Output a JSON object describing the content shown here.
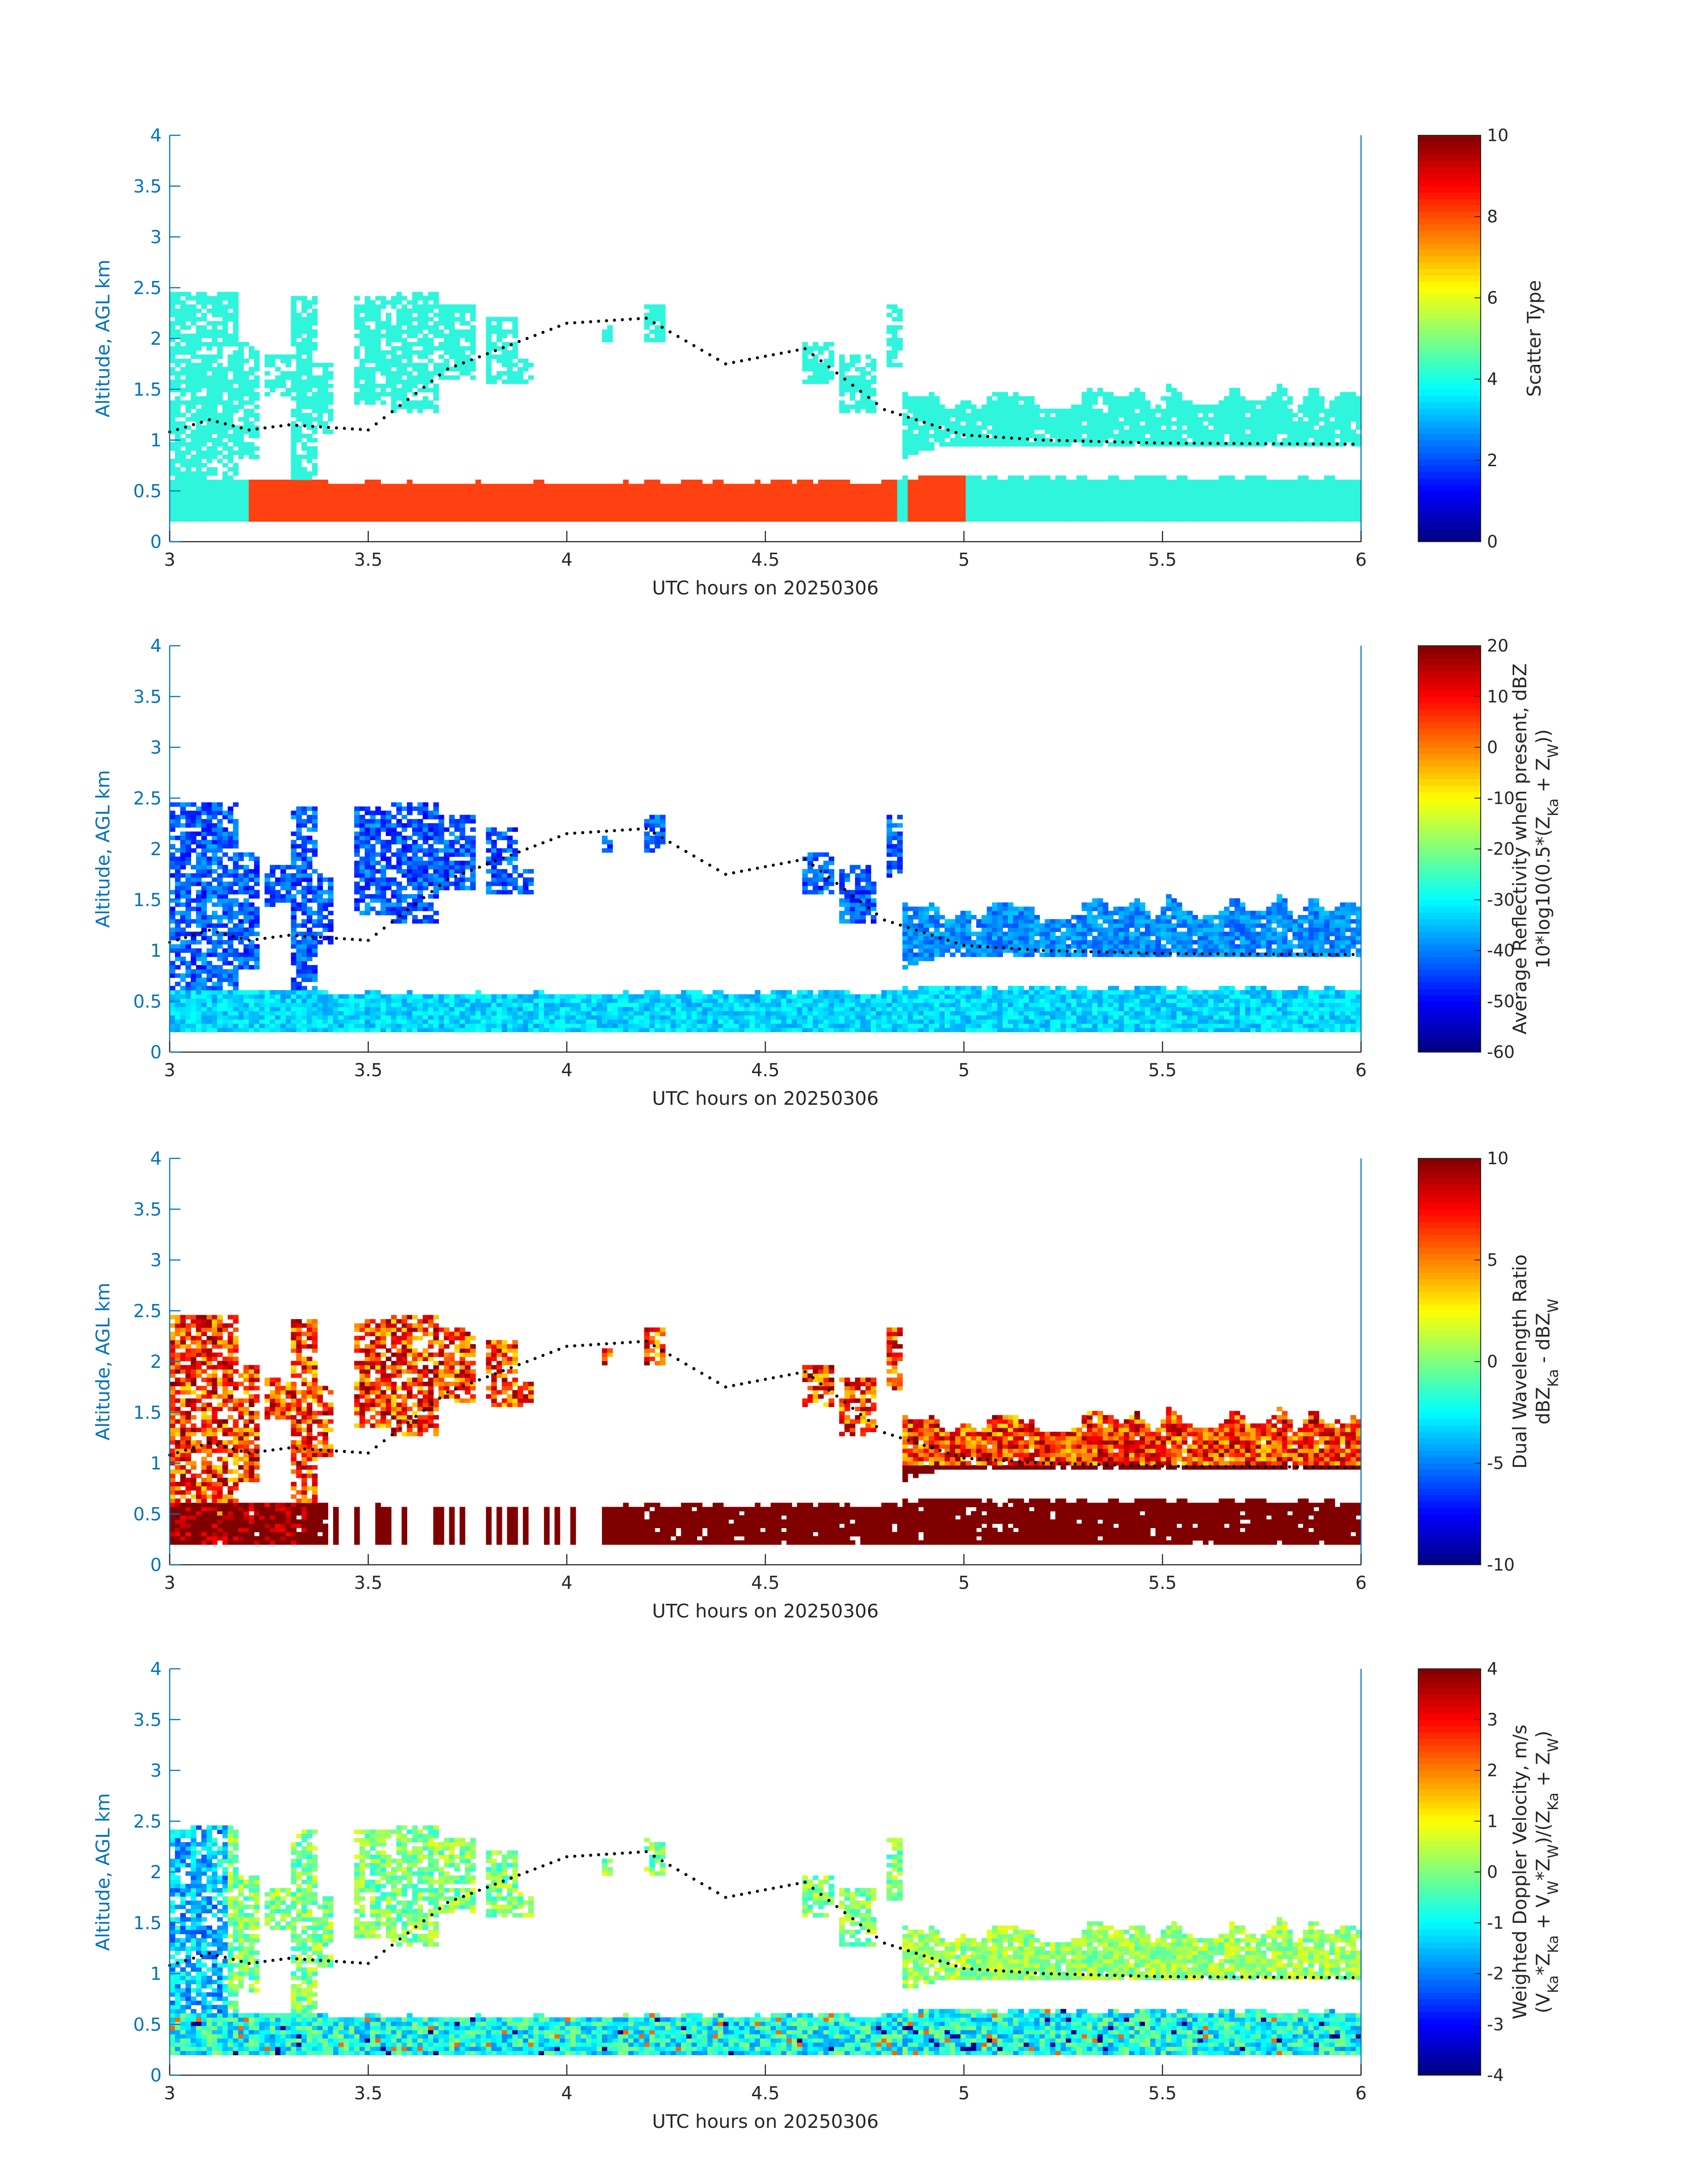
{
  "chart_data": [
    {
      "type": "heatmap",
      "title": "",
      "xlabel": "UTC hours on 20250306",
      "ylabel": "Altitude, AGL km",
      "xlim": [
        3,
        6
      ],
      "ylim": [
        0,
        4
      ],
      "xticks": [
        "3",
        "3.5",
        "4",
        "4.5",
        "5",
        "5.5",
        "6"
      ],
      "yticks": [
        "0",
        "0.5",
        "1",
        "1.5",
        "2",
        "2.5",
        "3",
        "3.5",
        "4"
      ],
      "colorbar": {
        "label_lines": [
          "Scatter Type"
        ],
        "range": [
          0,
          10
        ],
        "ticks": [
          "0",
          "2",
          "4",
          "6",
          "8",
          "10"
        ],
        "colormap": "jet"
      },
      "layers": [
        {
          "value": 4,
          "color": "#2ff5dc",
          "description": "cyan scatter class",
          "time_range": [
            3.0,
            6.0
          ],
          "altitude_range": [
            0.2,
            2.45
          ]
        },
        {
          "value": 9,
          "color": "#ff4010",
          "description": "orange scatter class",
          "time_range": [
            3.2,
            5.1
          ],
          "altitude_range": [
            0.2,
            0.7
          ]
        }
      ],
      "height_marker_points": [
        [
          3.0,
          1.08
        ],
        [
          3.1,
          1.2
        ],
        [
          3.2,
          1.1
        ],
        [
          3.3,
          1.15
        ],
        [
          3.5,
          1.1
        ],
        [
          3.7,
          1.7
        ],
        [
          4.0,
          2.15
        ],
        [
          4.2,
          2.2
        ],
        [
          4.4,
          1.75
        ],
        [
          4.6,
          1.9
        ],
        [
          4.8,
          1.3
        ],
        [
          5.0,
          1.05
        ],
        [
          5.2,
          1.0
        ],
        [
          5.5,
          0.97
        ],
        [
          6.0,
          0.96
        ]
      ]
    },
    {
      "type": "heatmap",
      "title": "",
      "xlabel": "UTC hours on 20250306",
      "ylabel": "Altitude, AGL km",
      "xlim": [
        3,
        6
      ],
      "ylim": [
        0,
        4
      ],
      "xticks": [
        "3",
        "3.5",
        "4",
        "4.5",
        "5",
        "5.5",
        "6"
      ],
      "yticks": [
        "0",
        "0.5",
        "1",
        "1.5",
        "2",
        "2.5",
        "3",
        "3.5",
        "4"
      ],
      "colorbar": {
        "label_lines": [
          "Average Reflectivity when present, dBZ",
          "10*log10(0.5*(Z_Ka + Z_W))"
        ],
        "range": [
          -60,
          20
        ],
        "ticks": [
          "-60",
          "-50",
          "-40",
          "-30",
          "-20",
          "-10",
          "0",
          "10",
          "20"
        ],
        "colormap": "jet"
      },
      "field_summary": {
        "boundary_layer_dBZ": [
          -40,
          -30
        ],
        "cloud_layer_dBZ": [
          -55,
          -35
        ]
      }
    },
    {
      "type": "heatmap",
      "title": "",
      "xlabel": "UTC hours on 20250306",
      "ylabel": "Altitude, AGL km",
      "xlim": [
        3,
        6
      ],
      "ylim": [
        0,
        4
      ],
      "xticks": [
        "3",
        "3.5",
        "4",
        "4.5",
        "5",
        "5.5",
        "6"
      ],
      "yticks": [
        "0",
        "0.5",
        "1",
        "1.5",
        "2",
        "2.5",
        "3",
        "3.5",
        "4"
      ],
      "colorbar": {
        "label_lines": [
          "Dual Wavelength Ratio",
          "dBZ_Ka - dBZ_W"
        ],
        "range": [
          -10,
          10
        ],
        "ticks": [
          "-10",
          "-5",
          "0",
          "5",
          "10"
        ],
        "colormap": "jet"
      },
      "field_summary": {
        "lower_layer_dB": 10,
        "upper_cloud_dB": [
          4,
          9
        ]
      }
    },
    {
      "type": "heatmap",
      "title": "",
      "xlabel": "UTC hours on 20250306",
      "ylabel": "Altitude, AGL km",
      "xlim": [
        3,
        6
      ],
      "ylim": [
        0,
        4
      ],
      "xticks": [
        "3",
        "3.5",
        "4",
        "4.5",
        "5",
        "5.5",
        "6"
      ],
      "yticks": [
        "0",
        "0.5",
        "1",
        "1.5",
        "2",
        "2.5",
        "3",
        "3.5",
        "4"
      ],
      "colorbar": {
        "label_lines": [
          "Weighted Doppler Velocity, m/s",
          "(V_Ka*Z_Ka + V_W*Z_W)/(Z_Ka + Z_W)"
        ],
        "range": [
          -4,
          4
        ],
        "ticks": [
          "-4",
          "-3",
          "-2",
          "-1",
          "0",
          "1",
          "2",
          "3",
          "4"
        ],
        "colormap": "jet"
      },
      "field_summary": {
        "typical_velocity_m_s": [
          -1.5,
          1
        ]
      }
    }
  ]
}
